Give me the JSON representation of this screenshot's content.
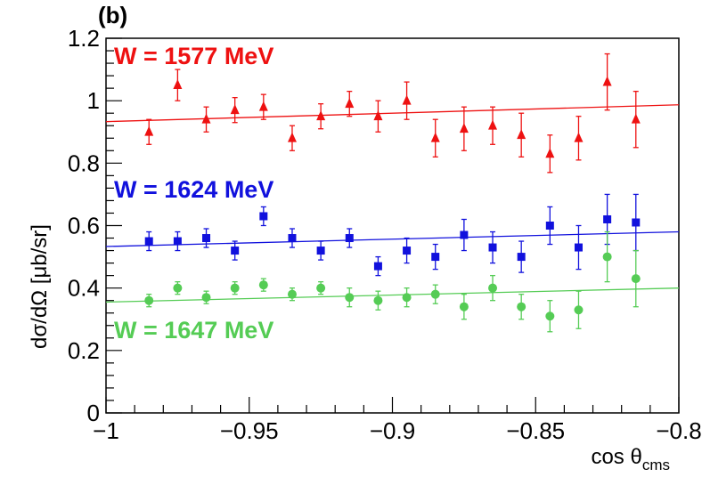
{
  "panel_label": "(b)",
  "chart_data": {
    "type": "scatter",
    "xlabel": "cos θ",
    "xlabel_sub": "cms",
    "ylabel": "dσ/dΩ [μb/sr]",
    "xlim": [
      -1.0,
      -0.8
    ],
    "ylim": [
      0,
      1.2
    ],
    "x_ticks": [
      -1,
      -0.95,
      -0.9,
      -0.85,
      -0.8
    ],
    "x_tick_labels": [
      "−1",
      "−0.95",
      "−0.9",
      "−0.85",
      "−0.8"
    ],
    "y_ticks": [
      0,
      0.2,
      0.4,
      0.6,
      0.8,
      1,
      1.2
    ],
    "y_tick_labels": [
      "0",
      "0.2",
      "0.4",
      "0.6",
      "0.8",
      "1",
      "1.2"
    ],
    "grid": false,
    "x": [
      -0.985,
      -0.975,
      -0.965,
      -0.955,
      -0.945,
      -0.935,
      -0.925,
      -0.915,
      -0.905,
      -0.895,
      -0.885,
      -0.875,
      -0.865,
      -0.855,
      -0.845,
      -0.835,
      -0.825,
      -0.815
    ],
    "series": [
      {
        "name": "W = 1577 MeV",
        "color": "#ee1111",
        "marker": "triangle",
        "y": [
          0.9,
          1.05,
          0.94,
          0.97,
          0.98,
          0.88,
          0.95,
          0.99,
          0.95,
          1.0,
          0.88,
          0.91,
          0.92,
          0.89,
          0.83,
          0.88,
          1.06,
          0.94
        ],
        "err": [
          0.04,
          0.05,
          0.04,
          0.04,
          0.04,
          0.04,
          0.04,
          0.04,
          0.05,
          0.06,
          0.06,
          0.07,
          0.06,
          0.07,
          0.06,
          0.07,
          0.09,
          0.09
        ],
        "fit": [
          0.933,
          0.987
        ]
      },
      {
        "name": "W = 1624 MeV",
        "color": "#1111dd",
        "marker": "square",
        "y": [
          0.55,
          0.55,
          0.56,
          0.52,
          0.63,
          0.56,
          0.52,
          0.56,
          0.47,
          0.52,
          0.5,
          0.57,
          0.53,
          0.5,
          0.6,
          0.53,
          0.62,
          0.61
        ],
        "err": [
          0.03,
          0.03,
          0.03,
          0.03,
          0.03,
          0.03,
          0.03,
          0.03,
          0.03,
          0.04,
          0.04,
          0.05,
          0.05,
          0.05,
          0.06,
          0.07,
          0.08,
          0.09
        ],
        "fit": [
          0.533,
          0.58
        ]
      },
      {
        "name": "W = 1647 MeV",
        "color": "#55cc55",
        "marker": "circle",
        "y": [
          0.36,
          0.4,
          0.37,
          0.4,
          0.41,
          0.38,
          0.4,
          0.37,
          0.36,
          0.37,
          0.38,
          0.34,
          0.4,
          0.34,
          0.31,
          0.33,
          0.5,
          0.43
        ],
        "err": [
          0.02,
          0.02,
          0.02,
          0.02,
          0.02,
          0.02,
          0.02,
          0.03,
          0.03,
          0.03,
          0.03,
          0.04,
          0.04,
          0.04,
          0.05,
          0.06,
          0.08,
          0.09
        ],
        "fit": [
          0.355,
          0.4
        ]
      }
    ]
  }
}
